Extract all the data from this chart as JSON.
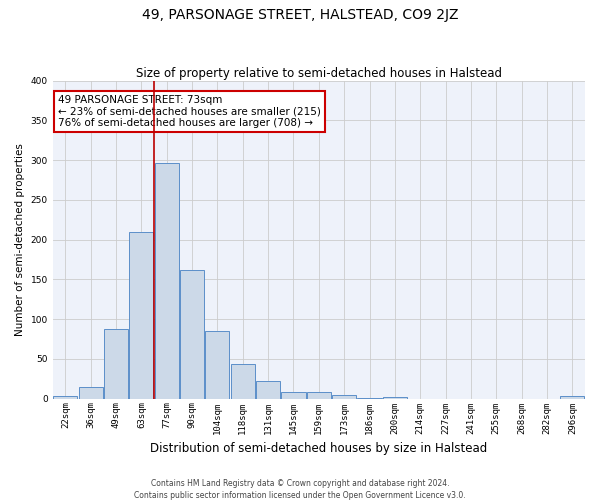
{
  "title": "49, PARSONAGE STREET, HALSTEAD, CO9 2JZ",
  "subtitle": "Size of property relative to semi-detached houses in Halstead",
  "xlabel": "Distribution of semi-detached houses by size in Halstead",
  "ylabel": "Number of semi-detached properties",
  "bar_labels": [
    "22sqm",
    "36sqm",
    "49sqm",
    "63sqm",
    "77sqm",
    "90sqm",
    "104sqm",
    "118sqm",
    "131sqm",
    "145sqm",
    "159sqm",
    "173sqm",
    "186sqm",
    "200sqm",
    "214sqm",
    "227sqm",
    "241sqm",
    "255sqm",
    "268sqm",
    "282sqm",
    "296sqm"
  ],
  "bar_values": [
    3,
    15,
    88,
    210,
    297,
    162,
    85,
    43,
    22,
    8,
    8,
    5,
    1,
    2,
    0,
    0,
    0,
    0,
    0,
    0,
    3
  ],
  "bar_color": "#ccd9e8",
  "bar_edge_color": "#5b8fc9",
  "grid_color": "#cccccc",
  "background_color": "#eef2fa",
  "red_line_index": 4,
  "annotation_line1": "49 PARSONAGE STREET: 73sqm",
  "annotation_line2": "← 23% of semi-detached houses are smaller (215)",
  "annotation_line3": "76% of semi-detached houses are larger (708) →",
  "annotation_box_facecolor": "#ffffff",
  "annotation_box_edgecolor": "#cc0000",
  "ylim": [
    0,
    400
  ],
  "yticks": [
    0,
    50,
    100,
    150,
    200,
    250,
    300,
    350,
    400
  ],
  "footer1": "Contains HM Land Registry data © Crown copyright and database right 2024.",
  "footer2": "Contains public sector information licensed under the Open Government Licence v3.0.",
  "title_fontsize": 10,
  "subtitle_fontsize": 8.5,
  "ylabel_fontsize": 7.5,
  "xlabel_fontsize": 8.5,
  "tick_fontsize": 6.5,
  "annot_fontsize": 7.5,
  "footer_fontsize": 5.5
}
